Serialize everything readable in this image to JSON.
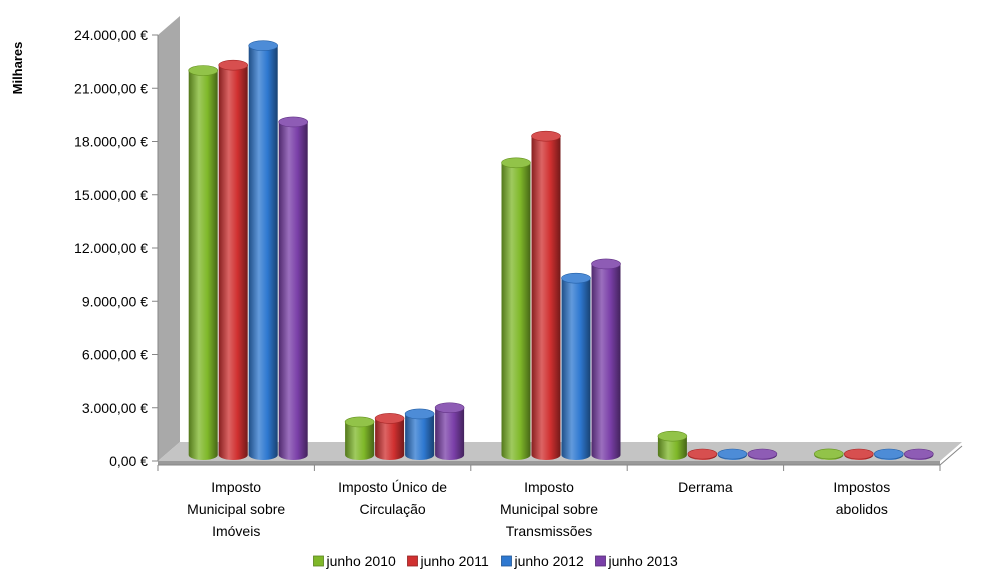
{
  "chart_data": {
    "type": "bar",
    "style": "3d-clustered-cylinder",
    "ylabel": "Milhares",
    "ylim": [
      0,
      24000
    ],
    "y_ticks": [
      "0,00 €",
      "3.000,00 €",
      "6.000,00 €",
      "9.000,00 €",
      "12.000,00 €",
      "15.000,00 €",
      "18.000,00 €",
      "21.000,00 €",
      "24.000,00 €"
    ],
    "categories": [
      [
        "Imposto",
        "Municipal sobre",
        "Imóveis"
      ],
      [
        "Imposto Único de",
        "Circulação"
      ],
      [
        "Imposto",
        "Municipal sobre",
        "Transmissões"
      ],
      [
        "Derrama"
      ],
      [
        "Impostos",
        "abolidos"
      ]
    ],
    "series": [
      {
        "name": "junho 2010",
        "color": "#7fb829",
        "values": [
          22000,
          2200,
          16800,
          1400,
          400
        ]
      },
      {
        "name": "junho 2011",
        "color": "#d03030",
        "values": [
          22300,
          2400,
          18300,
          100,
          350
        ]
      },
      {
        "name": "junho 2012",
        "color": "#2e78d0",
        "values": [
          23400,
          2650,
          10300,
          60,
          80
        ]
      },
      {
        "name": "junho 2013",
        "color": "#7a3fa8",
        "values": [
          19100,
          3000,
          11100,
          60,
          70
        ]
      }
    ],
    "legend_position": "bottom",
    "grid": false
  }
}
